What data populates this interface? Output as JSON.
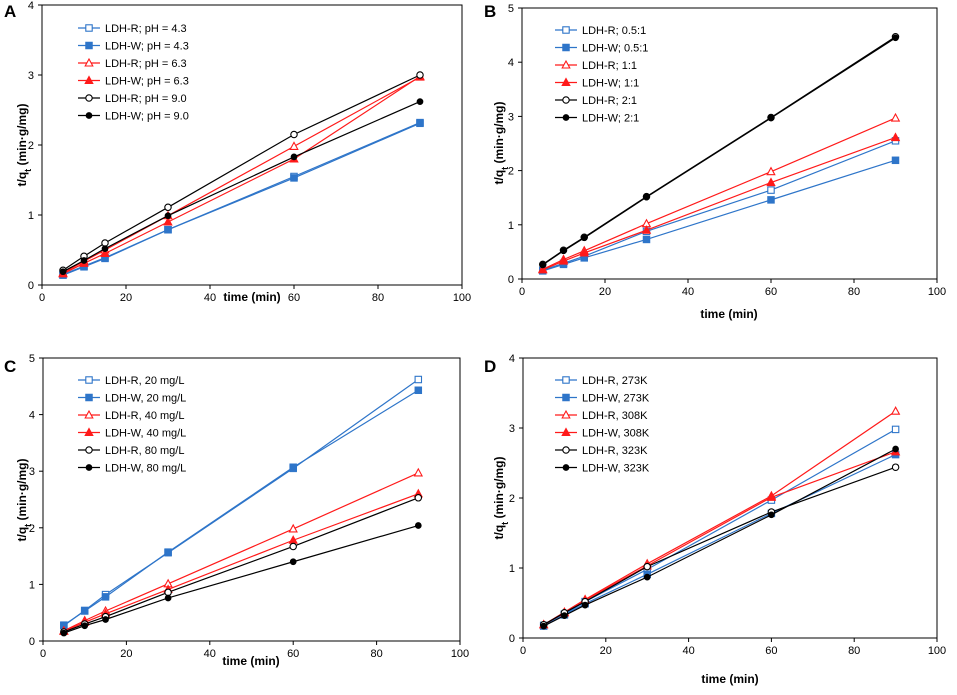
{
  "colors": {
    "blue": "#2e75c9",
    "red": "#ff1a1a",
    "black": "#000000"
  },
  "chart_data": [
    {
      "panel": "A",
      "type": "line",
      "xlabel": "time (min)",
      "ylabel": "t/qt (min·g/mg)",
      "xlim": [
        0,
        100
      ],
      "ylim": [
        0,
        4
      ],
      "xticks": [
        0,
        20,
        40,
        60,
        80,
        100
      ],
      "yticks": [
        0,
        1,
        2,
        3,
        4
      ],
      "legend_position": "top-left",
      "x": [
        5,
        10,
        15,
        30,
        60,
        90
      ],
      "series": [
        {
          "name": "LDH-R; pH = 4.3",
          "color": "#2e75c9",
          "marker": "square-open",
          "values": [
            0.15,
            0.27,
            0.39,
            0.79,
            1.55,
            2.32
          ]
        },
        {
          "name": "LDH-W; pH = 4.3",
          "color": "#2e75c9",
          "marker": "square-filled",
          "values": [
            0.14,
            0.26,
            0.38,
            0.79,
            1.53,
            2.31
          ]
        },
        {
          "name": "LDH-R; pH = 6.3",
          "color": "#ff1a1a",
          "marker": "triangle-open",
          "values": [
            0.17,
            0.34,
            0.5,
            0.99,
            1.98,
            2.97
          ]
        },
        {
          "name": "LDH-W; pH = 6.3",
          "color": "#ff1a1a",
          "marker": "triangle-filled",
          "values": [
            0.16,
            0.31,
            0.45,
            0.9,
            1.8,
            2.98
          ]
        },
        {
          "name": "LDH-R; pH = 9.0",
          "color": "#000000",
          "marker": "circle-open",
          "values": [
            0.21,
            0.41,
            0.6,
            1.11,
            2.15,
            3.0
          ]
        },
        {
          "name": "LDH-W; pH = 9.0",
          "color": "#000000",
          "marker": "circle-filled",
          "values": [
            0.19,
            0.35,
            0.52,
            0.99,
            1.83,
            2.62
          ]
        }
      ]
    },
    {
      "panel": "B",
      "type": "line",
      "xlabel": "time (min)",
      "ylabel": "t/qt (min·g/mg)",
      "xlim": [
        0,
        100
      ],
      "ylim": [
        0,
        5
      ],
      "xticks": [
        0,
        20,
        40,
        60,
        80,
        100
      ],
      "yticks": [
        0,
        1,
        2,
        3,
        4,
        5
      ],
      "legend_position": "top-left",
      "x": [
        5,
        10,
        15,
        30,
        60,
        90
      ],
      "series": [
        {
          "name": "LDH-R; 0.5:1",
          "color": "#2e75c9",
          "marker": "square-open",
          "values": [
            0.16,
            0.29,
            0.42,
            0.88,
            1.64,
            2.55
          ]
        },
        {
          "name": "LDH-W; 0.5:1",
          "color": "#2e75c9",
          "marker": "square-filled",
          "values": [
            0.15,
            0.27,
            0.39,
            0.73,
            1.46,
            2.19
          ]
        },
        {
          "name": "LDH-R; 1:1",
          "color": "#ff1a1a",
          "marker": "triangle-open",
          "values": [
            0.18,
            0.36,
            0.52,
            1.02,
            1.98,
            2.97
          ]
        },
        {
          "name": "LDH-W; 1:1",
          "color": "#ff1a1a",
          "marker": "triangle-filled",
          "values": [
            0.17,
            0.33,
            0.48,
            0.9,
            1.78,
            2.61
          ]
        },
        {
          "name": "LDH-R; 2:1",
          "color": "#000000",
          "marker": "circle-open",
          "values": [
            0.27,
            0.53,
            0.77,
            1.52,
            2.98,
            4.47
          ]
        },
        {
          "name": "LDH-W; 2:1",
          "color": "#000000",
          "marker": "circle-filled",
          "values": [
            0.26,
            0.52,
            0.76,
            1.51,
            2.97,
            4.45
          ]
        }
      ]
    },
    {
      "panel": "C",
      "type": "line",
      "xlabel": "time (min)",
      "ylabel": "t/qt (min·g/mg)",
      "xlim": [
        0,
        100
      ],
      "ylim": [
        0,
        5
      ],
      "xticks": [
        0,
        20,
        40,
        60,
        80,
        100
      ],
      "yticks": [
        0,
        1,
        2,
        3,
        4,
        5
      ],
      "legend_position": "top-left",
      "x": [
        5,
        10,
        15,
        30,
        60,
        90
      ],
      "series": [
        {
          "name": "LDH-R, 20 mg/L",
          "color": "#2e75c9",
          "marker": "square-open",
          "values": [
            0.27,
            0.54,
            0.82,
            1.56,
            3.05,
            4.62
          ]
        },
        {
          "name": "LDH-W, 20 mg/L",
          "color": "#2e75c9",
          "marker": "square-filled",
          "values": [
            0.28,
            0.53,
            0.78,
            1.57,
            3.07,
            4.43
          ]
        },
        {
          "name": "LDH-R, 40 mg/L",
          "color": "#ff1a1a",
          "marker": "triangle-open",
          "values": [
            0.18,
            0.36,
            0.53,
            1.01,
            1.98,
            2.97
          ]
        },
        {
          "name": "LDH-W, 40 mg/L",
          "color": "#ff1a1a",
          "marker": "triangle-filled",
          "values": [
            0.17,
            0.33,
            0.48,
            0.91,
            1.78,
            2.6
          ]
        },
        {
          "name": "LDH-R, 80 mg/L",
          "color": "#000000",
          "marker": "circle-open",
          "values": [
            0.16,
            0.3,
            0.43,
            0.86,
            1.67,
            2.53
          ]
        },
        {
          "name": "LDH-W, 80 mg/L",
          "color": "#000000",
          "marker": "circle-filled",
          "values": [
            0.14,
            0.27,
            0.38,
            0.76,
            1.4,
            2.04
          ]
        }
      ]
    },
    {
      "panel": "D",
      "type": "line",
      "xlabel": "time (min)",
      "ylabel": "t/qt (min·g/mg)",
      "xlim": [
        0,
        100
      ],
      "ylim": [
        0,
        4
      ],
      "xticks": [
        0,
        20,
        40,
        60,
        80,
        100
      ],
      "yticks": [
        0,
        1,
        2,
        3,
        4
      ],
      "legend_position": "top-left",
      "x": [
        5,
        10,
        15,
        30,
        60,
        90
      ],
      "series": [
        {
          "name": "LDH-R, 273K",
          "color": "#2e75c9",
          "marker": "square-open",
          "values": [
            0.18,
            0.34,
            0.52,
            0.98,
            1.97,
            2.98
          ]
        },
        {
          "name": "LDH-W, 273K",
          "color": "#2e75c9",
          "marker": "square-filled",
          "values": [
            0.17,
            0.33,
            0.49,
            0.91,
            1.78,
            2.62
          ]
        },
        {
          "name": "LDH-R, 308K",
          "color": "#ff1a1a",
          "marker": "triangle-open",
          "values": [
            0.19,
            0.37,
            0.55,
            1.06,
            2.03,
            3.24
          ]
        },
        {
          "name": "LDH-W, 308K",
          "color": "#ff1a1a",
          "marker": "triangle-filled",
          "values": [
            0.19,
            0.36,
            0.54,
            1.03,
            2.01,
            2.66
          ]
        },
        {
          "name": "LDH-R, 323K",
          "color": "#000000",
          "marker": "circle-open",
          "values": [
            0.19,
            0.36,
            0.52,
            1.02,
            1.8,
            2.44
          ]
        },
        {
          "name": "LDH-W, 323K",
          "color": "#000000",
          "marker": "circle-filled",
          "values": [
            0.17,
            0.32,
            0.47,
            0.87,
            1.76,
            2.7
          ]
        }
      ]
    }
  ]
}
